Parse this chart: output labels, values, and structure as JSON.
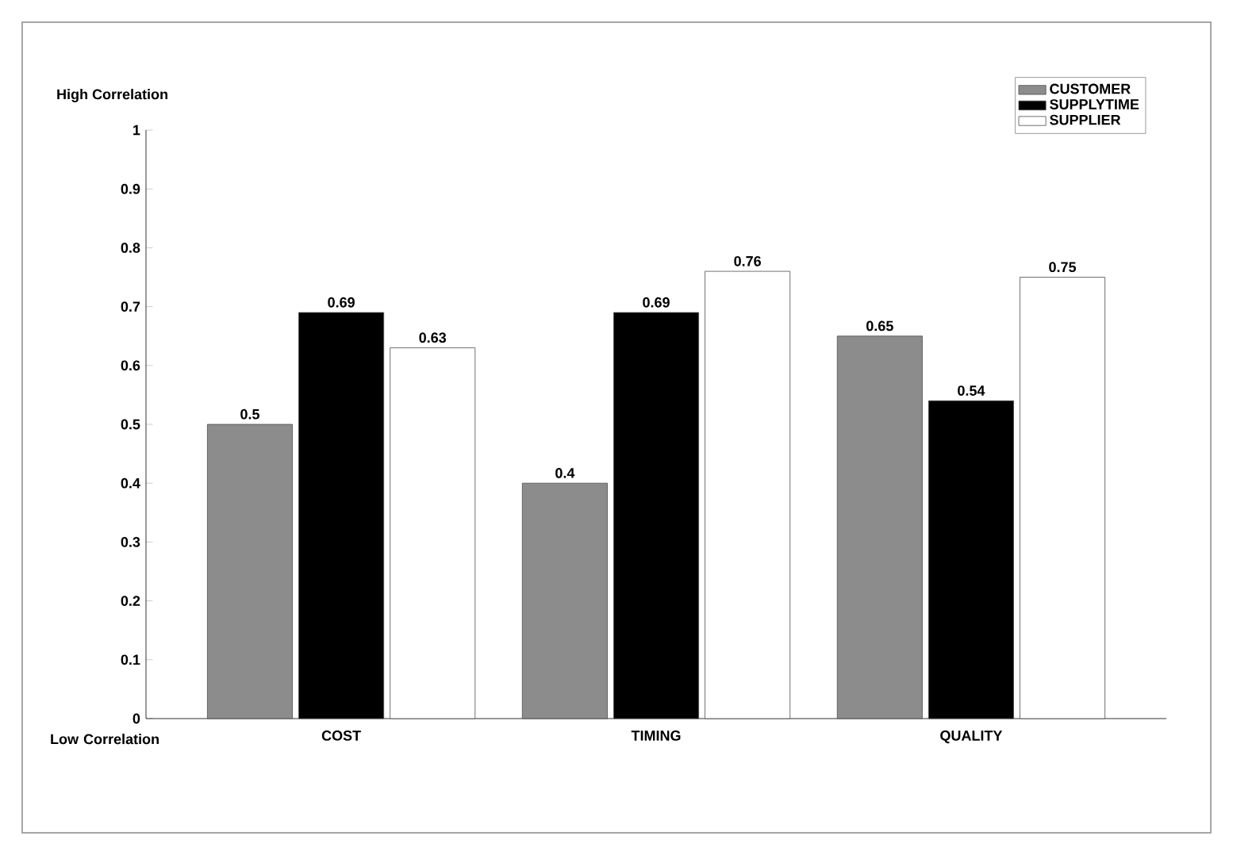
{
  "chart_data": {
    "type": "bar",
    "categories": [
      "COST",
      "TIMING",
      "QUALITY"
    ],
    "series": [
      {
        "name": "CUSTOMER",
        "color": "#8c8c8c",
        "values": [
          0.5,
          0.4,
          0.65
        ]
      },
      {
        "name": "SUPPLYTIME",
        "color": "#000000",
        "values": [
          0.69,
          0.69,
          0.54
        ]
      },
      {
        "name": "SUPPLIER",
        "color": "#ffffff",
        "values": [
          0.63,
          0.76,
          0.75
        ]
      }
    ],
    "ylim": [
      0,
      1
    ],
    "yticks": [
      0,
      0.1,
      0.2,
      0.3,
      0.4,
      0.5,
      0.6,
      0.7,
      0.8,
      0.9,
      1
    ],
    "data_labels": true,
    "legend": "top right",
    "grid": false,
    "annotations": [
      "High Correlation",
      "Low Correlation"
    ]
  }
}
